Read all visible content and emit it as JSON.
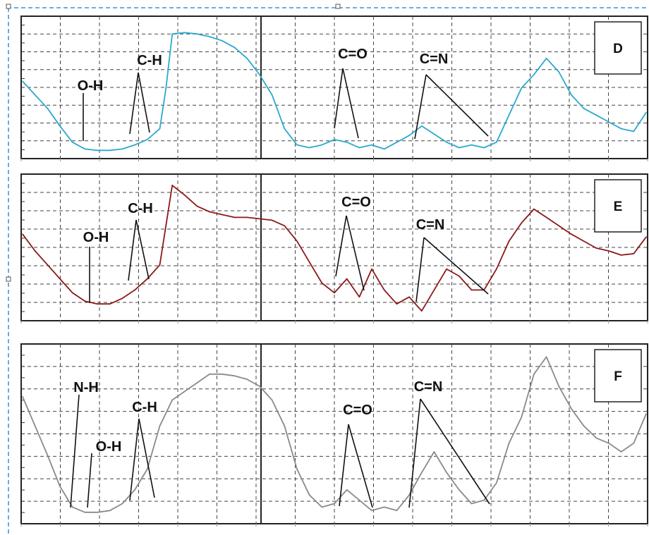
{
  "chart_data": [
    {
      "type": "line",
      "panel_label": "D",
      "color": "#2aa9cf",
      "xlim": [
        0,
        1
      ],
      "ylim": [
        0,
        1
      ],
      "annotations": [
        {
          "text": "O-H"
        },
        {
          "text": "C-H"
        },
        {
          "text": "C=O"
        },
        {
          "text": "C=N"
        }
      ],
      "series": [
        {
          "x": [
            0.0,
            0.02,
            0.04,
            0.06,
            0.08,
            0.1,
            0.12,
            0.14,
            0.16,
            0.18,
            0.2,
            0.22,
            0.23,
            0.24,
            0.26,
            0.28,
            0.3,
            0.32,
            0.34,
            0.36,
            0.38,
            0.4,
            0.42,
            0.44,
            0.46,
            0.48,
            0.5,
            0.52,
            0.54,
            0.56,
            0.58,
            0.6,
            0.62,
            0.64,
            0.66,
            0.68,
            0.7,
            0.72,
            0.74,
            0.76,
            0.78,
            0.8,
            0.82,
            0.84,
            0.86,
            0.88,
            0.9,
            0.92,
            0.94,
            0.96,
            0.98,
            1.0
          ],
          "y": [
            0.55,
            0.45,
            0.35,
            0.22,
            0.1,
            0.05,
            0.04,
            0.04,
            0.05,
            0.08,
            0.12,
            0.2,
            0.5,
            0.9,
            0.91,
            0.9,
            0.88,
            0.85,
            0.8,
            0.72,
            0.6,
            0.45,
            0.2,
            0.08,
            0.06,
            0.08,
            0.12,
            0.1,
            0.06,
            0.08,
            0.05,
            0.1,
            0.15,
            0.22,
            0.16,
            0.1,
            0.06,
            0.08,
            0.06,
            0.1,
            0.3,
            0.5,
            0.6,
            0.72,
            0.62,
            0.45,
            0.35,
            0.3,
            0.25,
            0.2,
            0.18,
            0.32
          ]
        }
      ]
    },
    {
      "type": "line",
      "panel_label": "E",
      "color": "#8b1a1a",
      "xlim": [
        0,
        1
      ],
      "ylim": [
        0,
        1
      ],
      "annotations": [
        {
          "text": "O-H"
        },
        {
          "text": "C-H"
        },
        {
          "text": "C=O"
        },
        {
          "text": "C=N"
        }
      ],
      "series": [
        {
          "x": [
            0.0,
            0.02,
            0.04,
            0.06,
            0.08,
            0.1,
            0.12,
            0.14,
            0.16,
            0.18,
            0.2,
            0.22,
            0.24,
            0.26,
            0.28,
            0.3,
            0.32,
            0.34,
            0.36,
            0.38,
            0.4,
            0.42,
            0.44,
            0.46,
            0.48,
            0.5,
            0.52,
            0.54,
            0.56,
            0.58,
            0.6,
            0.62,
            0.64,
            0.66,
            0.68,
            0.7,
            0.72,
            0.74,
            0.76,
            0.78,
            0.8,
            0.82,
            0.84,
            0.86,
            0.88,
            0.9,
            0.92,
            0.94,
            0.96,
            0.98,
            1.0
          ],
          "y": [
            0.6,
            0.48,
            0.38,
            0.28,
            0.18,
            0.12,
            0.1,
            0.1,
            0.14,
            0.2,
            0.28,
            0.38,
            0.95,
            0.88,
            0.8,
            0.76,
            0.74,
            0.72,
            0.72,
            0.71,
            0.7,
            0.66,
            0.55,
            0.4,
            0.25,
            0.18,
            0.28,
            0.15,
            0.35,
            0.2,
            0.1,
            0.15,
            0.05,
            0.2,
            0.35,
            0.3,
            0.2,
            0.2,
            0.35,
            0.55,
            0.68,
            0.78,
            0.72,
            0.66,
            0.6,
            0.55,
            0.5,
            0.48,
            0.45,
            0.46,
            0.58
          ]
        }
      ]
    },
    {
      "type": "line",
      "panel_label": "F",
      "color": "#8a8a8a",
      "xlim": [
        0,
        1
      ],
      "ylim": [
        0,
        1
      ],
      "annotations": [
        {
          "text": "N-H"
        },
        {
          "text": "O-H"
        },
        {
          "text": "C-H"
        },
        {
          "text": "C=O"
        },
        {
          "text": "C=N"
        }
      ],
      "series": [
        {
          "x": [
            0.0,
            0.02,
            0.04,
            0.06,
            0.08,
            0.1,
            0.12,
            0.14,
            0.16,
            0.18,
            0.2,
            0.22,
            0.24,
            0.26,
            0.28,
            0.3,
            0.32,
            0.34,
            0.36,
            0.38,
            0.4,
            0.42,
            0.44,
            0.46,
            0.48,
            0.5,
            0.52,
            0.54,
            0.56,
            0.58,
            0.6,
            0.62,
            0.64,
            0.66,
            0.68,
            0.7,
            0.72,
            0.74,
            0.76,
            0.78,
            0.8,
            0.82,
            0.84,
            0.86,
            0.88,
            0.9,
            0.92,
            0.94,
            0.96,
            0.98,
            1.0
          ],
          "y": [
            0.72,
            0.55,
            0.38,
            0.2,
            0.08,
            0.05,
            0.05,
            0.06,
            0.1,
            0.18,
            0.3,
            0.55,
            0.7,
            0.75,
            0.8,
            0.85,
            0.85,
            0.84,
            0.82,
            0.78,
            0.7,
            0.55,
            0.3,
            0.15,
            0.08,
            0.1,
            0.18,
            0.12,
            0.06,
            0.08,
            0.06,
            0.15,
            0.28,
            0.4,
            0.28,
            0.18,
            0.1,
            0.12,
            0.22,
            0.45,
            0.6,
            0.85,
            0.95,
            0.78,
            0.65,
            0.55,
            0.48,
            0.45,
            0.4,
            0.45,
            0.62
          ]
        }
      ]
    }
  ]
}
